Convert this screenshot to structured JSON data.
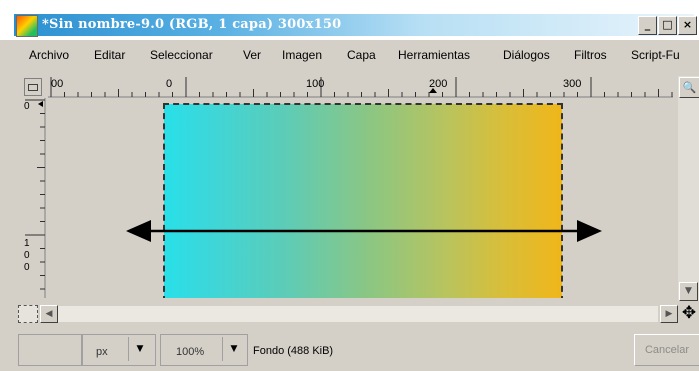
{
  "window": {
    "title": "*Sin nombre-9.0 (RGB, 1 capa) 300x150",
    "minimize": "_",
    "maximize": "□",
    "close": "×"
  },
  "menu": {
    "items": [
      {
        "label": "Archivo"
      },
      {
        "label": "Editar"
      },
      {
        "label": "Seleccionar"
      },
      {
        "label": "Ver"
      },
      {
        "label": "Imagen"
      },
      {
        "label": "Capa"
      },
      {
        "label": "Herramientas"
      },
      {
        "label": "Diálogos"
      },
      {
        "label": "Filtros"
      },
      {
        "label": "Script-Fu"
      }
    ]
  },
  "ruler_h": {
    "labels": [
      "00",
      "0",
      "100",
      "200",
      "300"
    ]
  },
  "ruler_v": {
    "labels": [
      "0",
      "1",
      "0",
      "0"
    ]
  },
  "statusbar": {
    "unit": "px",
    "zoom": "100%",
    "layer_info": "Fondo (488 KiB)",
    "cancel_label": "Cancelar"
  },
  "colors": {
    "gradient_start": "#28e0e8",
    "gradient_end": "#f0b61a",
    "titlebar": "#2a8fd0"
  },
  "icons": [
    "app-icon",
    "zoom-icon",
    "quickmask-icon",
    "navigate-icon",
    "arrow-icon"
  ]
}
